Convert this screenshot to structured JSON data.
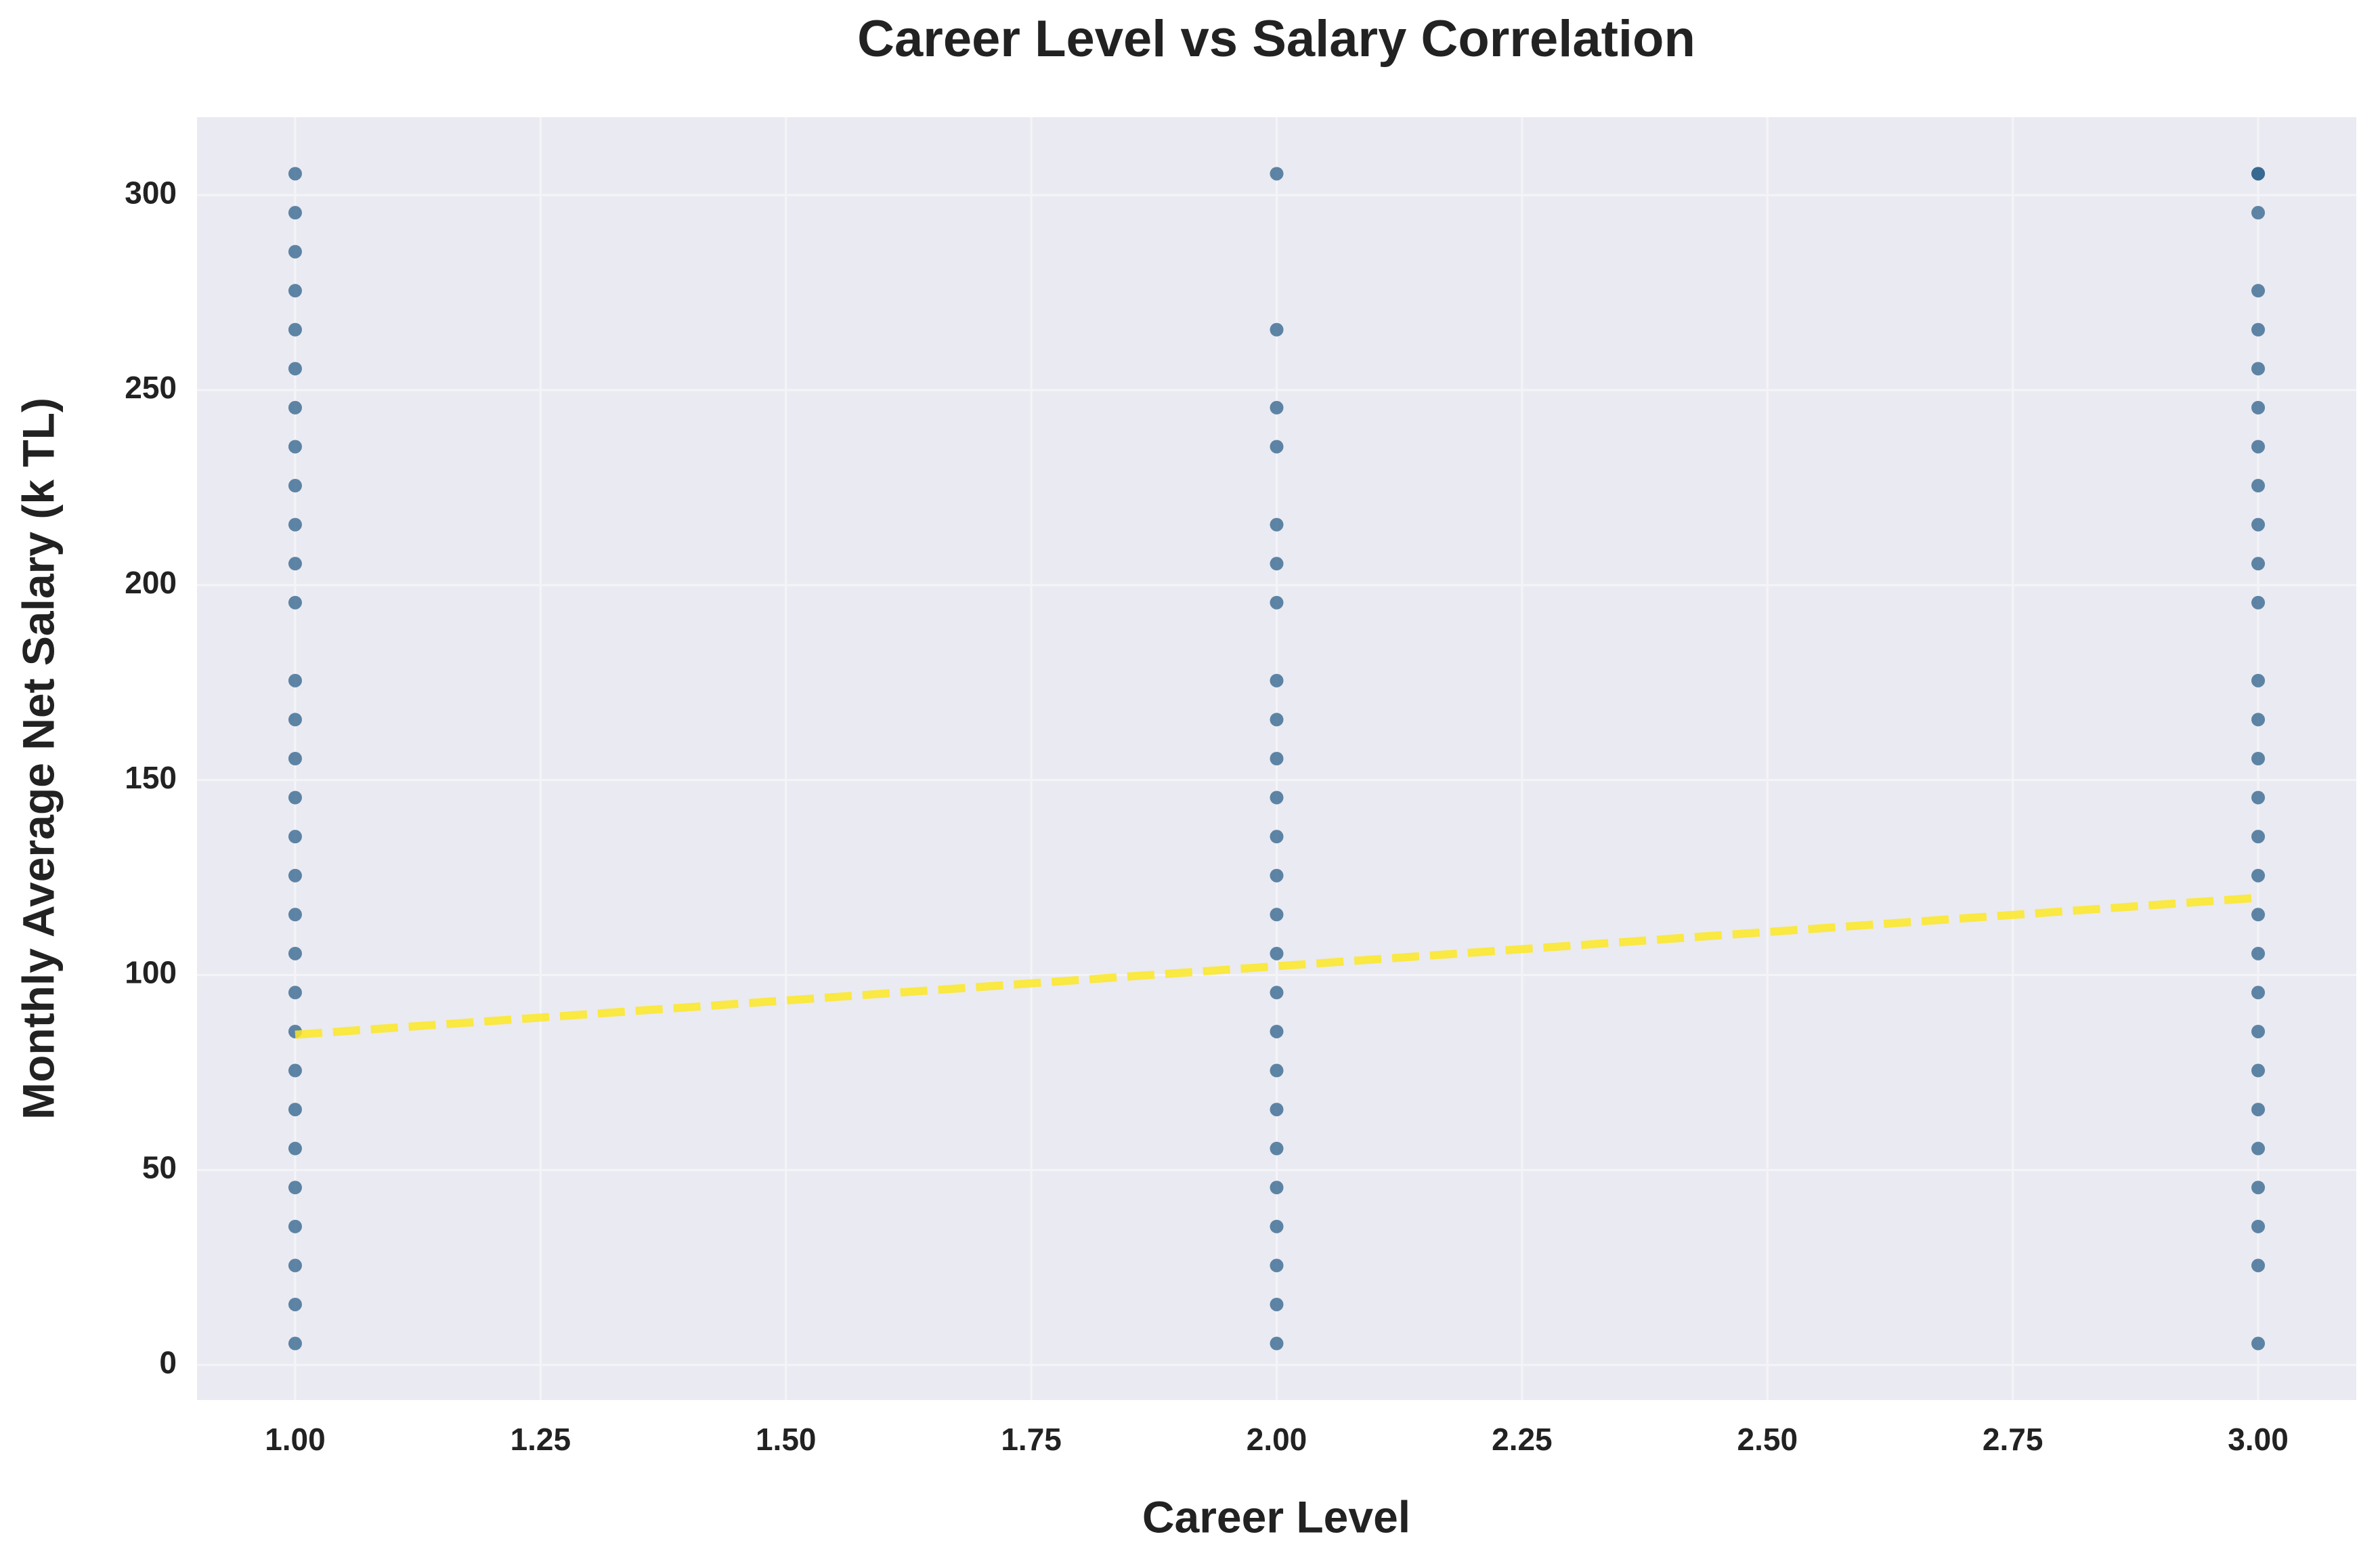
{
  "chart_data": {
    "type": "scatter",
    "title": "Career Level vs Salary Correlation",
    "x_label": "Career Level",
    "y_label": "Monthly Average Net Salary (k TL)",
    "series": [
      {
        "color": "#2c6089",
        "x": [
          1,
          1,
          1,
          1,
          1,
          1,
          1,
          1,
          1,
          1,
          1,
          1,
          1,
          1,
          1,
          1,
          1,
          1,
          1,
          1,
          1,
          1,
          1,
          1,
          1,
          1,
          1,
          1,
          1,
          1,
          2,
          2,
          2,
          2,
          2,
          2,
          2,
          2,
          2,
          2,
          2,
          2,
          2,
          2,
          2,
          2,
          2,
          2,
          2,
          2,
          2,
          2,
          2,
          2,
          2,
          3,
          3,
          3,
          3,
          3,
          3,
          3,
          3,
          3,
          3,
          3,
          3,
          3,
          3,
          3,
          3,
          3,
          3,
          3,
          3,
          3,
          3,
          3,
          3,
          3,
          3,
          3,
          3,
          3
        ],
        "values": [
          5.5,
          15.5,
          25.5,
          35.5,
          45.5,
          55.5,
          65.5,
          75.5,
          85.5,
          95.5,
          105.5,
          115.5,
          125.5,
          135.5,
          145.5,
          155.5,
          165.5,
          175.5,
          195.5,
          205.5,
          215.5,
          225.5,
          235.5,
          245.5,
          255.5,
          265.5,
          275.5,
          285.5,
          295.5,
          305.5,
          5.5,
          15.5,
          25.5,
          35.5,
          45.5,
          55.5,
          65.5,
          75.5,
          85.5,
          95.5,
          105.5,
          115.5,
          125.5,
          135.5,
          145.5,
          155.5,
          165.5,
          175.5,
          195.5,
          205.5,
          215.5,
          235.5,
          245.5,
          265.5,
          305.5,
          5.5,
          25.5,
          35.5,
          45.5,
          55.5,
          65.5,
          75.5,
          85.5,
          95.5,
          105.5,
          115.5,
          125.5,
          135.5,
          145.5,
          155.5,
          165.5,
          175.5,
          195.5,
          205.5,
          215.5,
          225.5,
          235.5,
          245.5,
          255.5,
          265.5,
          275.5,
          295.5,
          305.5,
          305.5
        ]
      }
    ],
    "trend_line": {
      "x": [
        1,
        3
      ],
      "values": [
        84.7,
        119.8
      ],
      "color": "#fde725"
    },
    "xlim": [
      0.9,
      3.1
    ],
    "ylim": [
      -9,
      320
    ],
    "xticks": [
      {
        "value": 1,
        "label": "1.00"
      },
      {
        "value": 1.25,
        "label": "1.25"
      },
      {
        "value": 1.5,
        "label": "1.50"
      },
      {
        "value": 1.75,
        "label": "1.75"
      },
      {
        "value": 2,
        "label": "2.00"
      },
      {
        "value": 2.25,
        "label": "2.25"
      },
      {
        "value": 2.5,
        "label": "2.50"
      },
      {
        "value": 2.75,
        "label": "2.75"
      },
      {
        "value": 3,
        "label": "3.00"
      }
    ],
    "yticks": [
      0,
      50,
      100,
      150,
      200,
      250,
      300
    ],
    "grid": true
  }
}
